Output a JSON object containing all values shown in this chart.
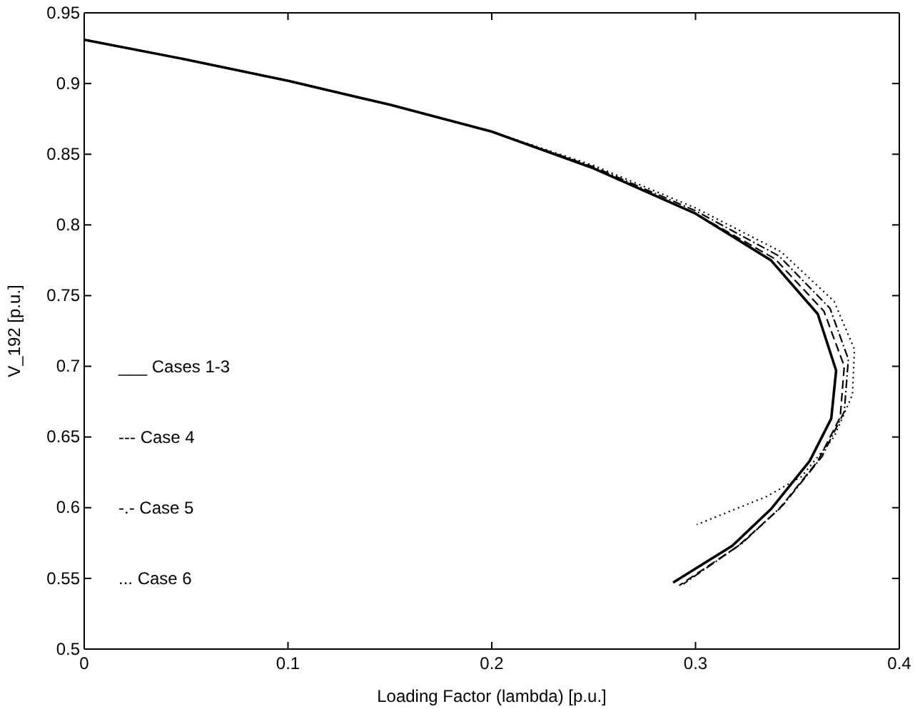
{
  "chart_data": {
    "type": "line",
    "xlabel": "Loading Factor (lambda) [p.u.]",
    "ylabel": "V_192 [p.u.]",
    "xlim": [
      0,
      0.4
    ],
    "ylim": [
      0.5,
      0.95
    ],
    "xticks": [
      0,
      0.1,
      0.2,
      0.3,
      0.4
    ],
    "yticks": [
      0.5,
      0.55,
      0.6,
      0.65,
      0.7,
      0.75,
      0.8,
      0.85,
      0.9,
      0.95
    ],
    "grid": false,
    "marker": "none",
    "annotations": [
      "___ Cases 1-3",
      "--- Case 4",
      "-.- Case 5",
      "... Case 6"
    ],
    "series": [
      {
        "color": "#000000",
        "line_style": "solid",
        "x": [
          0,
          0.05,
          0.1,
          0.15,
          0.2,
          0.25,
          0.3,
          0.337,
          0.36,
          0.369,
          0.3666,
          0.356,
          0.337,
          0.318,
          0.289
        ],
        "values": [
          0.931,
          0.917,
          0.902,
          0.885,
          0.866,
          0.84,
          0.808,
          0.775,
          0.737,
          0.697,
          0.663,
          0.633,
          0.599,
          0.573,
          0.547
        ]
      },
      {
        "color": "#000000",
        "line_style": "dashed",
        "x": [
          0,
          0.05,
          0.1,
          0.15,
          0.2,
          0.25,
          0.3,
          0.339,
          0.363,
          0.373,
          0.371,
          0.36,
          0.341,
          0.321,
          0.292
        ],
        "values": [
          0.931,
          0.917,
          0.902,
          0.885,
          0.866,
          0.84,
          0.808,
          0.776,
          0.739,
          0.7,
          0.664,
          0.633,
          0.599,
          0.573,
          0.545
        ]
      },
      {
        "color": "#000000",
        "line_style": "dashdot",
        "x": [
          0,
          0.05,
          0.1,
          0.15,
          0.2,
          0.25,
          0.3,
          0.341,
          0.366,
          0.375,
          0.373,
          0.362,
          0.343,
          0.323,
          0.294
        ],
        "values": [
          0.931,
          0.917,
          0.902,
          0.885,
          0.866,
          0.841,
          0.81,
          0.778,
          0.741,
          0.705,
          0.668,
          0.636,
          0.602,
          0.575,
          0.546
        ]
      },
      {
        "color": "#000000",
        "line_style": "dotted",
        "x": [
          0,
          0.05,
          0.1,
          0.15,
          0.2,
          0.25,
          0.3,
          0.342,
          0.368,
          0.378,
          0.377,
          0.368,
          0.352,
          0.335,
          0.3006
        ],
        "values": [
          0.931,
          0.917,
          0.902,
          0.885,
          0.866,
          0.842,
          0.812,
          0.781,
          0.746,
          0.712,
          0.68,
          0.65,
          0.622,
          0.608,
          0.588
        ]
      }
    ]
  }
}
